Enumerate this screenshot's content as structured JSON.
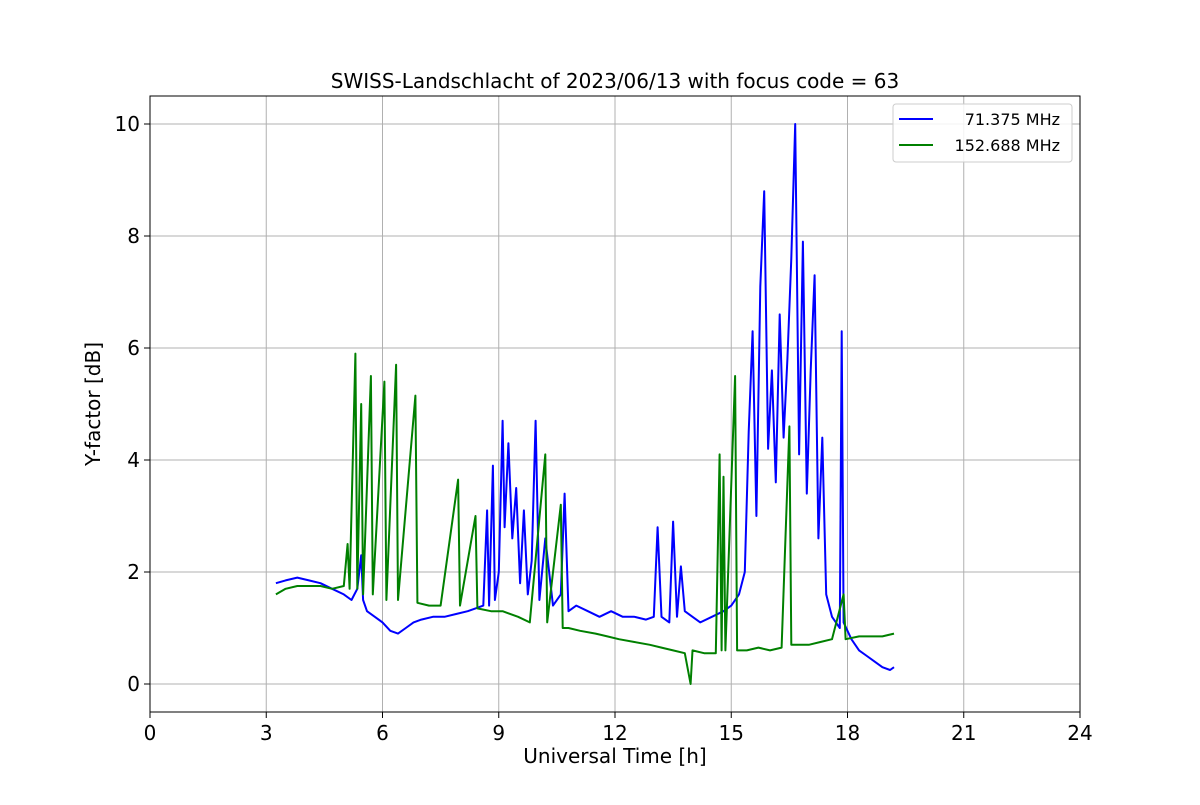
{
  "chart_data": {
    "type": "line",
    "title": "SWISS-Landschlacht of 2023/06/13 with focus code = 63",
    "xlabel": "Universal Time [h]",
    "ylabel": "Y-factor [dB]",
    "xlim": [
      0,
      24
    ],
    "ylim": [
      -0.5,
      10.5
    ],
    "xticks": [
      0,
      3,
      6,
      9,
      12,
      15,
      18,
      21,
      24
    ],
    "xtick_labels": [
      "0",
      "3",
      "6",
      "9",
      "12",
      "15",
      "18",
      "21",
      "24"
    ],
    "yticks": [
      0,
      2,
      4,
      6,
      8,
      10
    ],
    "ytick_labels": [
      "0",
      "2",
      "4",
      "6",
      "8",
      "10"
    ],
    "grid": true,
    "legend_position": "top-right",
    "series": [
      {
        "name": "71.375 MHz",
        "color": "#0000ff",
        "points": [
          [
            3.25,
            1.8
          ],
          [
            3.5,
            1.85
          ],
          [
            3.8,
            1.9
          ],
          [
            4.1,
            1.85
          ],
          [
            4.4,
            1.8
          ],
          [
            4.7,
            1.7
          ],
          [
            5.0,
            1.6
          ],
          [
            5.2,
            1.5
          ],
          [
            5.35,
            1.7
          ],
          [
            5.45,
            2.3
          ],
          [
            5.5,
            1.5
          ],
          [
            5.6,
            1.3
          ],
          [
            5.8,
            1.2
          ],
          [
            6.0,
            1.1
          ],
          [
            6.2,
            0.95
          ],
          [
            6.4,
            0.9
          ],
          [
            6.6,
            1.0
          ],
          [
            6.8,
            1.1
          ],
          [
            7.0,
            1.15
          ],
          [
            7.3,
            1.2
          ],
          [
            7.6,
            1.2
          ],
          [
            7.9,
            1.25
          ],
          [
            8.2,
            1.3
          ],
          [
            8.4,
            1.35
          ],
          [
            8.6,
            1.4
          ],
          [
            8.7,
            3.1
          ],
          [
            8.75,
            1.4
          ],
          [
            8.85,
            3.9
          ],
          [
            8.9,
            1.5
          ],
          [
            9.0,
            2.0
          ],
          [
            9.1,
            4.7
          ],
          [
            9.15,
            2.8
          ],
          [
            9.25,
            4.3
          ],
          [
            9.35,
            2.6
          ],
          [
            9.45,
            3.5
          ],
          [
            9.55,
            1.8
          ],
          [
            9.65,
            3.1
          ],
          [
            9.75,
            1.6
          ],
          [
            9.85,
            2.2
          ],
          [
            9.95,
            4.7
          ],
          [
            10.05,
            1.5
          ],
          [
            10.2,
            2.6
          ],
          [
            10.4,
            1.4
          ],
          [
            10.6,
            1.6
          ],
          [
            10.7,
            3.4
          ],
          [
            10.8,
            1.3
          ],
          [
            11.0,
            1.4
          ],
          [
            11.3,
            1.3
          ],
          [
            11.6,
            1.2
          ],
          [
            11.9,
            1.3
          ],
          [
            12.2,
            1.2
          ],
          [
            12.5,
            1.2
          ],
          [
            12.8,
            1.15
          ],
          [
            13.0,
            1.2
          ],
          [
            13.1,
            2.8
          ],
          [
            13.2,
            1.2
          ],
          [
            13.4,
            1.1
          ],
          [
            13.5,
            2.9
          ],
          [
            13.6,
            1.2
          ],
          [
            13.7,
            2.1
          ],
          [
            13.8,
            1.3
          ],
          [
            14.0,
            1.2
          ],
          [
            14.2,
            1.1
          ],
          [
            14.5,
            1.2
          ],
          [
            14.8,
            1.3
          ],
          [
            15.0,
            1.4
          ],
          [
            15.2,
            1.6
          ],
          [
            15.35,
            2.0
          ],
          [
            15.45,
            4.5
          ],
          [
            15.55,
            6.3
          ],
          [
            15.65,
            3.0
          ],
          [
            15.75,
            7.1
          ],
          [
            15.85,
            8.8
          ],
          [
            15.95,
            4.2
          ],
          [
            16.05,
            5.6
          ],
          [
            16.15,
            3.6
          ],
          [
            16.25,
            6.6
          ],
          [
            16.35,
            4.4
          ],
          [
            16.45,
            5.8
          ],
          [
            16.55,
            7.6
          ],
          [
            16.65,
            10.0
          ],
          [
            16.75,
            4.1
          ],
          [
            16.85,
            7.9
          ],
          [
            16.95,
            3.4
          ],
          [
            17.05,
            5.6
          ],
          [
            17.15,
            7.3
          ],
          [
            17.25,
            2.6
          ],
          [
            17.35,
            4.4
          ],
          [
            17.45,
            1.6
          ],
          [
            17.6,
            1.2
          ],
          [
            17.8,
            1.0
          ],
          [
            17.85,
            6.3
          ],
          [
            17.9,
            1.1
          ],
          [
            18.1,
            0.8
          ],
          [
            18.3,
            0.6
          ],
          [
            18.5,
            0.5
          ],
          [
            18.7,
            0.4
          ],
          [
            18.9,
            0.3
          ],
          [
            19.1,
            0.25
          ],
          [
            19.2,
            0.3
          ]
        ]
      },
      {
        "name": "152.688 MHz",
        "color": "#008000",
        "points": [
          [
            3.25,
            1.6
          ],
          [
            3.5,
            1.7
          ],
          [
            3.8,
            1.75
          ],
          [
            4.1,
            1.75
          ],
          [
            4.4,
            1.75
          ],
          [
            4.7,
            1.7
          ],
          [
            5.0,
            1.75
          ],
          [
            5.1,
            2.5
          ],
          [
            5.15,
            1.7
          ],
          [
            5.3,
            5.9
          ],
          [
            5.35,
            1.7
          ],
          [
            5.45,
            5.0
          ],
          [
            5.5,
            1.6
          ],
          [
            5.7,
            5.5
          ],
          [
            5.75,
            1.6
          ],
          [
            6.05,
            5.4
          ],
          [
            6.1,
            1.5
          ],
          [
            6.35,
            5.7
          ],
          [
            6.4,
            1.5
          ],
          [
            6.85,
            5.15
          ],
          [
            6.9,
            1.45
          ],
          [
            7.2,
            1.4
          ],
          [
            7.5,
            1.4
          ],
          [
            7.95,
            3.65
          ],
          [
            8.0,
            1.4
          ],
          [
            8.4,
            3.0
          ],
          [
            8.45,
            1.35
          ],
          [
            8.8,
            1.3
          ],
          [
            9.1,
            1.3
          ],
          [
            9.5,
            1.2
          ],
          [
            9.8,
            1.1
          ],
          [
            10.2,
            4.1
          ],
          [
            10.25,
            1.1
          ],
          [
            10.6,
            3.2
          ],
          [
            10.65,
            1.0
          ],
          [
            10.8,
            1.0
          ],
          [
            11.1,
            0.95
          ],
          [
            11.5,
            0.9
          ],
          [
            11.8,
            0.85
          ],
          [
            12.1,
            0.8
          ],
          [
            12.5,
            0.75
          ],
          [
            12.9,
            0.7
          ],
          [
            13.2,
            0.65
          ],
          [
            13.5,
            0.6
          ],
          [
            13.8,
            0.55
          ],
          [
            13.95,
            0.0
          ],
          [
            14.0,
            0.6
          ],
          [
            14.3,
            0.55
          ],
          [
            14.6,
            0.55
          ],
          [
            14.7,
            4.1
          ],
          [
            14.75,
            0.6
          ],
          [
            14.8,
            3.7
          ],
          [
            14.85,
            0.6
          ],
          [
            15.1,
            5.5
          ],
          [
            15.15,
            0.6
          ],
          [
            15.4,
            0.6
          ],
          [
            15.7,
            0.65
          ],
          [
            16.0,
            0.6
          ],
          [
            16.3,
            0.65
          ],
          [
            16.5,
            4.6
          ],
          [
            16.55,
            0.7
          ],
          [
            16.8,
            0.7
          ],
          [
            17.0,
            0.7
          ],
          [
            17.3,
            0.75
          ],
          [
            17.6,
            0.8
          ],
          [
            17.9,
            1.6
          ],
          [
            17.95,
            0.8
          ],
          [
            18.3,
            0.85
          ],
          [
            18.6,
            0.85
          ],
          [
            18.9,
            0.85
          ],
          [
            19.2,
            0.9
          ]
        ]
      }
    ]
  }
}
